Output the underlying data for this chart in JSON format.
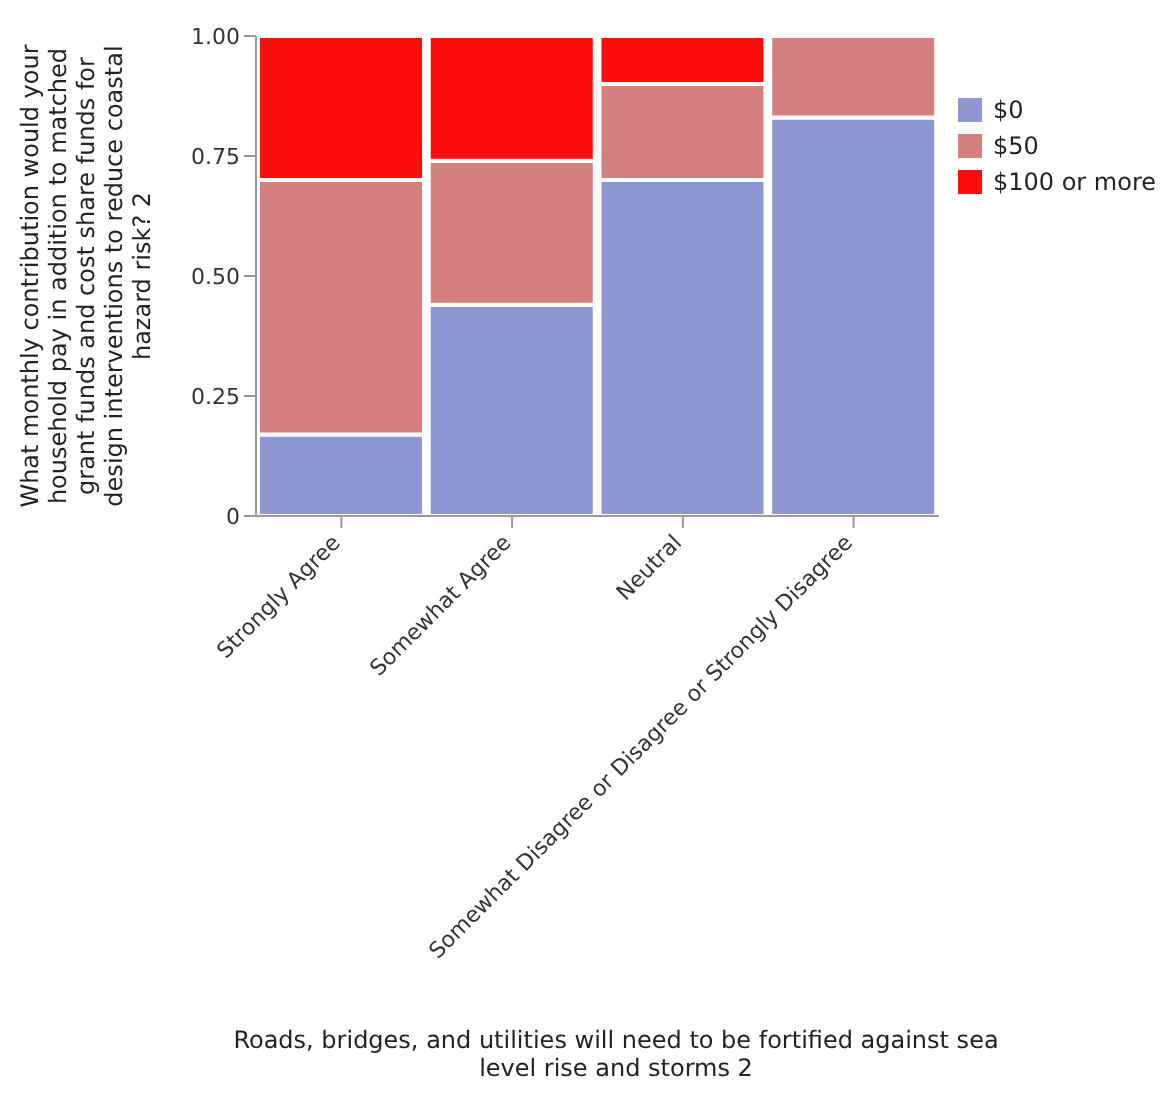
{
  "chart_data": {
    "type": "bar",
    "stacked": true,
    "xlabel": "Roads, bridges, and utilities will need to be fortified against sea level rise and storms 2",
    "ylabel": "What monthly contribution would your household pay in addition to matched grant funds and cost share funds for design interventions to reduce coastal hazard risk? 2",
    "categories": [
      "Strongly Agree",
      "Somewhat Agree",
      "Neutral",
      "Somewhat Disagree or Disagree or Strongly Disagree"
    ],
    "series": [
      {
        "name": "$0",
        "color": "#8d95d3",
        "values": [
          0.17,
          0.44,
          0.7,
          0.83
        ]
      },
      {
        "name": "$50",
        "color": "#d48080",
        "values": [
          0.53,
          0.3,
          0.2,
          0.17
        ]
      },
      {
        "name": "$100 or more",
        "color": "#fb0d0d",
        "values": [
          0.3,
          0.26,
          0.1,
          0
        ]
      }
    ],
    "ylim": [
      0,
      1
    ],
    "yticks": [
      0,
      {
        "value": 0.25,
        "label": "0.25"
      },
      {
        "value": 0.5,
        "label": "0.50"
      },
      {
        "value": 0.75,
        "label": "0.75"
      },
      {
        "value": 1,
        "label": "1.00"
      }
    ],
    "grid": false,
    "legend": "right"
  }
}
